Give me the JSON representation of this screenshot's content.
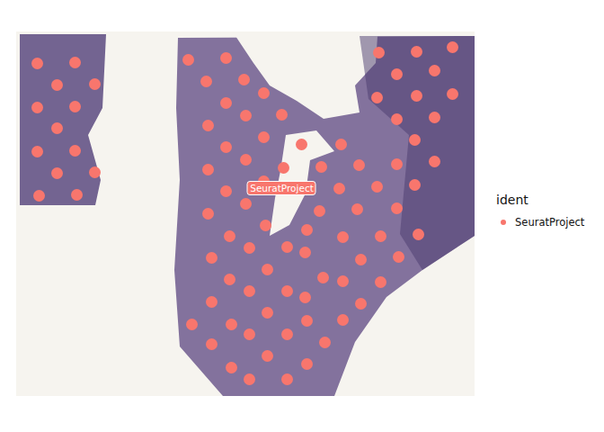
{
  "chart_data": {
    "type": "scatter",
    "tick_labels": false,
    "legend": "right",
    "legend_title": "ident",
    "xlim": [
      18,
      528
    ],
    "ylim": [
      35,
      440
    ],
    "series": [
      {
        "name": "SeuratProject",
        "color": "#F8766D",
        "marker": "circle",
        "x": [
          41,
          83,
          63,
          105,
          41,
          83,
          63,
          41,
          83,
          63,
          105,
          43,
          85,
          209,
          251,
          229,
          271,
          251,
          293,
          231,
          273,
          313,
          251,
          293,
          335,
          379,
          231,
          273,
          315,
          357,
          399,
          441,
          483,
          251,
          293,
          335,
          377,
          419,
          461,
          231,
          273,
          295,
          355,
          397,
          441,
          255,
          277,
          319,
          341,
          381,
          423,
          465,
          235,
          297,
          339,
          359,
          401,
          443,
          255,
          277,
          319,
          381,
          423,
          235,
          297,
          339,
          401,
          213,
          257,
          319,
          341,
          381,
          235,
          277,
          297,
          361,
          257,
          319,
          341,
          277,
          421,
          463,
          503,
          441,
          483,
          419,
          463,
          503,
          441,
          483,
          461
        ],
        "y": [
          70,
          69,
          94,
          93,
          119,
          118,
          142,
          168,
          167,
          192,
          191,
          217,
          216,
          66,
          64,
          90,
          88,
          114,
          103,
          139,
          128,
          127,
          163,
          152,
          160,
          160,
          188,
          177,
          186,
          185,
          183,
          182,
          179,
          212,
          201,
          210,
          209,
          207,
          205,
          237,
          226,
          250,
          234,
          232,
          231,
          262,
          275,
          274,
          255,
          263,
          262,
          260,
          286,
          299,
          280,
          308,
          288,
          285,
          310,
          323,
          323,
          312,
          313,
          335,
          347,
          330,
          337,
          360,
          360,
          371,
          356,
          355,
          382,
          371,
          395,
          380,
          408,
          421,
          404,
          421,
          58,
          57,
          52,
          82,
          78,
          108,
          106,
          104,
          132,
          130,
          155
        ]
      }
    ]
  }
}
